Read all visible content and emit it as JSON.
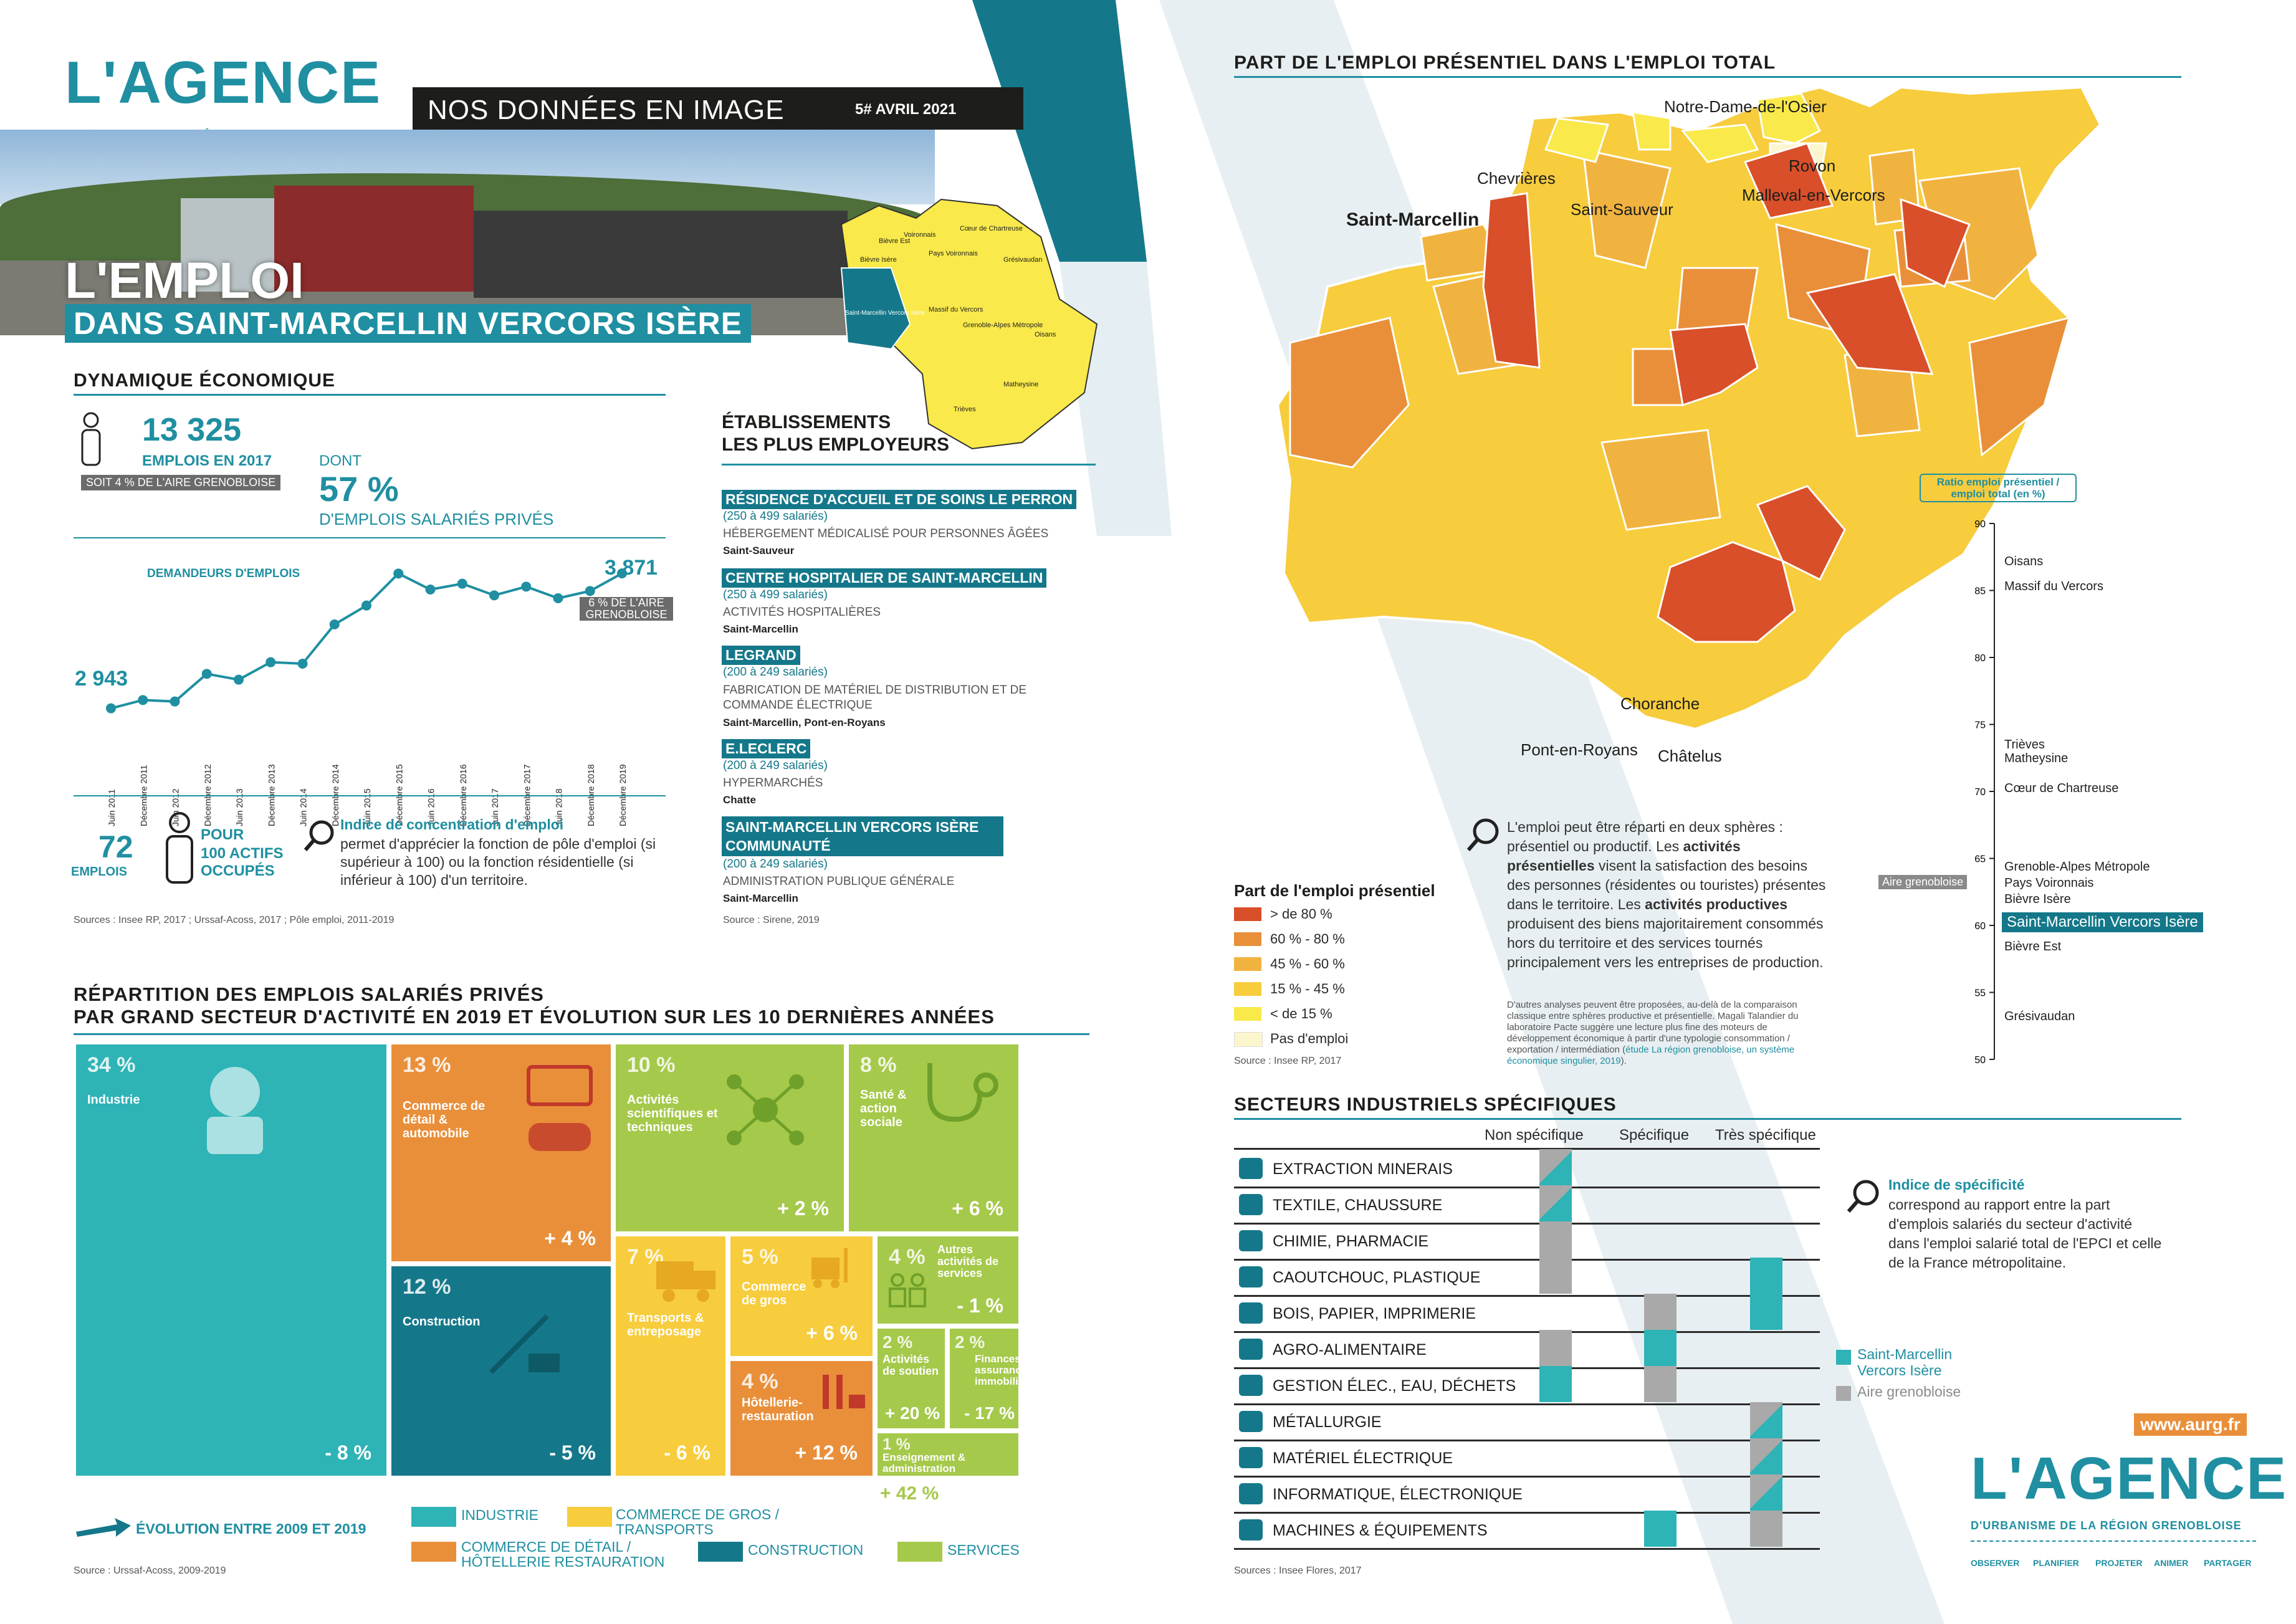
{
  "brand": {
    "logo_text": "L'AGENCE",
    "logo_sub": "D'URBANISME DE LA RÉGION GRENOBLOISE",
    "banner": "NOS DONNÉES EN IMAGE",
    "issue": "5# AVRIL 2021",
    "title_1": "L'EMPLOI",
    "title_2": "DANS SAINT-MARCELLIN VERCORS ISÈRE",
    "site": "www.aurg.fr",
    "footer_nav": [
      "OBSERVER",
      "PLANIFIER",
      "PROJETER",
      "ANIMER",
      "PARTAGER"
    ],
    "colors": {
      "teal": "#1f8fa1",
      "dark_teal": "#14788a",
      "orange": "#e98f3a",
      "yellow": "#f7cc3d",
      "green": "#a5c94a",
      "sky": "#2eb3b6"
    }
  },
  "locator_map": {
    "labels": [
      "Bièvre Isère",
      "Bièvre Est",
      "Voironnais",
      "Cœur de Chartreuse",
      "Pays Voironnais",
      "Grésivaudan",
      "Saint-Marcellin Vercors Isère",
      "Massif du Vercors",
      "Grenoble-Alpes Métropole",
      "Oisans",
      "Matheysine",
      "Trièves"
    ]
  },
  "dynamique": {
    "title": "DYNAMIQUE ÉCONOMIQUE",
    "emplois_value": "13 325",
    "emplois_label": "EMPLOIS EN 2017",
    "emplois_note": "SOIT 4 % DE L'AIRE GRENOBLOISE",
    "dont": "DONT",
    "prive_value": "57 %",
    "prive_label": "D'EMPLOIS SALARIÉS PRIVÉS",
    "demandeurs_label": "DEMANDEURS D'EMPLOIS",
    "start_value": "2 943",
    "end_value": "3 871",
    "end_note": "6 % DE L'AIRE GRENOBLOISE",
    "concentration_value": "72",
    "concentration_unit": "EMPLOIS",
    "pour": "POUR",
    "actifs": "100 ACTIFS OCCUPÉS",
    "indice_title": "Indice de concentration d'emploi",
    "indice_text": "permet d'apprécier la fonction de pôle d'emploi (si supérieur à 100) ou la fonction résidentielle (si inférieur à 100) d'un territoire.",
    "source": "Sources : Insee RP, 2017 ; Urssaf-Acoss, 2017 ; Pôle emploi, 2011-2019"
  },
  "chart_data": {
    "type": "line",
    "title": "DEMANDEURS D'EMPLOIS",
    "categories": [
      "Juin 2011",
      "Décembre 2011",
      "Juin 2012",
      "Décembre 2012",
      "Juin 2013",
      "Décembre 2013",
      "Juin 2014",
      "Décembre 2014",
      "Juin 2015",
      "Décembre 2015",
      "Juin 2016",
      "Décembre 2016",
      "Juin 2017",
      "Décembre 2017",
      "Juin 2018",
      "Décembre 2018",
      "Décembre 2019"
    ],
    "values": [
      2943,
      3000,
      2990,
      3180,
      3140,
      3260,
      3250,
      3520,
      3650,
      3870,
      3760,
      3800,
      3720,
      3780,
      3700,
      3750,
      3871
    ],
    "ylim": [
      2800,
      4000
    ]
  },
  "employers": {
    "title_1": "ÉTABLISSEMENTS",
    "title_2": "LES PLUS EMPLOYEURS",
    "items": [
      {
        "name": "RÉSIDENCE D'ACCUEIL ET DE SOINS LE PERRON",
        "size": "(250 à 499 salariés)",
        "activity": "HÉBERGEMENT MÉDICALISÉ POUR PERSONNES ÂGÉES",
        "loc": "Saint-Sauveur"
      },
      {
        "name": "CENTRE HOSPITALIER DE SAINT-MARCELLIN",
        "size": "(250 à 499 salariés)",
        "activity": "ACTIVITÉS HOSPITALIÈRES",
        "loc": "Saint-Marcellin"
      },
      {
        "name": "LEGRAND",
        "size": "(200 à 249 salariés)",
        "activity": "FABRICATION DE MATÉRIEL DE DISTRIBUTION ET DE COMMANDE ÉLECTRIQUE",
        "loc": "Saint-Marcellin, Pont-en-Royans"
      },
      {
        "name": "E.LECLERC",
        "size": "(200 à 249 salariés)",
        "activity": "HYPERMARCHÉS",
        "loc": "Chatte"
      },
      {
        "name": "SAINT-MARCELLIN VERCORS ISÈRE COMMUNAUTÉ",
        "size": "(200 à 249 salariés)",
        "activity": "ADMINISTRATION PUBLIQUE GÉNÉRALE",
        "loc": "Saint-Marcellin"
      }
    ],
    "source": "Source : Sirene, 2019"
  },
  "repartition": {
    "title_1": "RÉPARTITION DES EMPLOIS SALARIÉS PRIVÉS",
    "title_2": "PAR GRAND SECTEUR D'ACTIVITÉ EN 2019 ET ÉVOLUTION SUR LES 10 DERNIÈRES ANNÉES",
    "cells": [
      {
        "pct": "34 %",
        "name": "Industrie",
        "evo": "- 8 %"
      },
      {
        "pct": "13 %",
        "name": "Commerce de détail & automobile",
        "evo": "+ 4 %"
      },
      {
        "pct": "12 %",
        "name": "Construction",
        "evo": "- 5 %"
      },
      {
        "pct": "10 %",
        "name": "Activités scientifiques et techniques",
        "evo": "+ 2 %"
      },
      {
        "pct": "8 %",
        "name": "Santé & action sociale",
        "evo": "+ 6 %"
      },
      {
        "pct": "7 %",
        "name": "Transports & entreposage",
        "evo": "- 6 %"
      },
      {
        "pct": "5 %",
        "name": "Commerce de gros",
        "evo": "+ 6 %"
      },
      {
        "pct": "4 %",
        "name": "Hôtellerie-restauration",
        "evo": "+ 12 %"
      },
      {
        "pct": "4 %",
        "name": "Autres activités de services",
        "evo": "- 1 %"
      },
      {
        "pct": "2 %",
        "name": "Activités de soutien",
        "evo": "+ 20 %"
      },
      {
        "pct": "2 %",
        "name": "Finances, assurances, immobilier",
        "evo": "- 17 %"
      },
      {
        "pct": "1 %",
        "name": "Enseignement & administration",
        "evo": "+ 42 %"
      }
    ],
    "legend": [
      "INDUSTRIE",
      "COMMERCE DE GROS / TRANSPORTS",
      "COMMERCE DE DÉTAIL / HÔTELLERIE RESTAURATION",
      "CONSTRUCTION",
      "SERVICES"
    ],
    "evolution_label": "ÉVOLUTION ENTRE 2009 ET 2019",
    "source": "Source : Urssaf-Acoss, 2009-2019"
  },
  "presentiel": {
    "title": "PART DE L'EMPLOI PRÉSENTIEL DANS L'EMPLOI TOTAL",
    "towns": [
      "Notre-Dame-de-l'Osier",
      "Chevrières",
      "Rovon",
      "Saint-Marcellin",
      "Saint-Sauveur",
      "Malleval-en-Vercors",
      "Choranche",
      "Pont-en-Royans",
      "Châtelus"
    ],
    "legend_title": "Part de l'emploi présentiel",
    "legend": [
      "> de 80 %",
      "60 % - 80 %",
      "45 % - 60 %",
      "15 % - 45 %",
      "< de 15 %",
      "Pas d'emploi"
    ],
    "legend_colors": [
      "#d84f2a",
      "#e98f3a",
      "#f1b340",
      "#f7cc3d",
      "#f9e94a",
      "#fcf6cf"
    ],
    "source": "Source : Insee RP, 2017",
    "text_1": "L'emploi peut être réparti en deux sphères : présentiel ou productif. Les ",
    "text_b1": "activités présentielles",
    "text_2": " visent la satisfaction des besoins des personnes (résidentes ou touristes) présentes dans le territoire. Les ",
    "text_b2": "activités productives",
    "text_3": " produisent des biens majoritairement consommés hors du territoire et des services tournés principalement vers les entreprises de production.",
    "note": "D'autres analyses peuvent être proposées, au-delà de la comparaison classique entre sphères productive et présentielle. Magali Talandier du laboratoire Pacte suggère une lecture plus fine des moteurs de développement économique à partir d'une typologie consommation / exportation / intermédiation (",
    "note_link": "étude La région grenobloise, un système économique singulier, 2019",
    "note_end": ").",
    "scale_title": "Ratio emploi présentiel / emploi total (en %)",
    "scale_ticks": [
      "90",
      "85",
      "80",
      "75",
      "70",
      "65",
      "60",
      "55",
      "50"
    ],
    "scale_items": [
      "Oisans",
      "Massif du Vercors",
      "Trièves",
      "Matheysine",
      "Cœur de Chartreuse",
      "Grenoble-Alpes Métropole",
      "Pays Voironnais",
      "Bièvre Isère",
      "Saint-Marcellin Vercors Isère",
      "Bièvre Est",
      "Grésivaudan"
    ],
    "aire_label": "Aire grenobloise"
  },
  "industriels": {
    "title": "SECTEURS INDUSTRIELS SPÉCIFIQUES",
    "headers": [
      "Non spécifique",
      "Spécifique",
      "Très spécifique"
    ],
    "rows": [
      "EXTRACTION MINERAIS",
      "TEXTILE, CHAUSSURE",
      "CHIMIE, PHARMACIE",
      "CAOUTCHOUC, PLASTIQUE",
      "BOIS, PAPIER, IMPRIMERIE",
      "AGRO-ALIMENTAIRE",
      "GESTION ÉLEC., EAU, DÉCHETS",
      "MÉTALLURGIE",
      "MATÉRIEL ÉLECTRIQUE",
      "INFORMATIQUE, ÉLECTRONIQUE",
      "MACHINES & ÉQUIPEMENTS"
    ],
    "indice_title": "Indice de spécificité",
    "indice_text": "correspond au rapport entre la part d'emplois salariés du secteur d'activité dans l'emploi salarié total de l'EPCI et celle de la France métropolitaine.",
    "legend_local": "Saint-Marcellin Vercors Isère",
    "legend_aire": "Aire grenobloise",
    "source": "Sources : Insee Flores, 2017"
  }
}
